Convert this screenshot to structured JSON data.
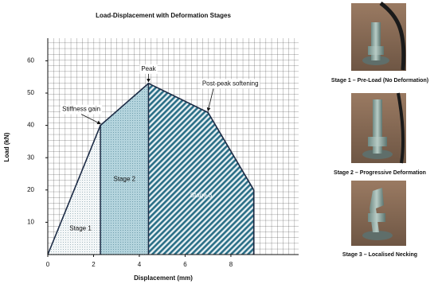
{
  "chart_data": {
    "type": "area-line",
    "title": "Load-Displacement with Deformation Stages",
    "xlabel": "Displacement (mm)",
    "ylabel": "Load (kN)",
    "x": [
      0,
      2.3,
      4.4,
      7,
      9
    ],
    "values": [
      0,
      40,
      53,
      44,
      20
    ],
    "color": "#1c2b45",
    "xlim": [
      0,
      10.96
    ],
    "ylim": [
      0,
      67
    ],
    "xticks": [
      0,
      2,
      4,
      6,
      8
    ],
    "yticks": [
      10,
      20,
      30,
      40,
      50,
      60
    ],
    "grid": true,
    "stages": [
      {
        "label": "Stage 1",
        "x": [
          0,
          2.3
        ],
        "color": "#e9eef0"
      },
      {
        "label": "Stage 2",
        "x": [
          2.3,
          4.4
        ],
        "color": "#a9cdd7"
      },
      {
        "label": "Stage 3",
        "x": [
          4.4,
          9
        ],
        "color": "#2b6f87"
      }
    ],
    "annotations": [
      {
        "text": "Stiffness gain",
        "x": 2.3,
        "y": 40
      },
      {
        "text": "Peak",
        "x": 4.4,
        "y": 53
      },
      {
        "text": "Post-peak softening",
        "x": 7,
        "y": 44
      }
    ]
  },
  "panels": [
    {
      "caption": "Stage 1 – Pre-Load (No Deformation)"
    },
    {
      "caption": "Stage 2 – Progressive Deformation"
    },
    {
      "caption": "Stage 3 – Localised Necking"
    }
  ]
}
